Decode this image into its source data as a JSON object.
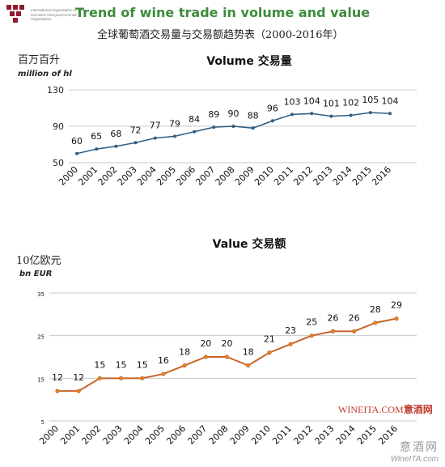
{
  "header": {
    "logo_text": "International Organisation of Vine and Wine Intergovernmental Organisation",
    "title": "Trend of wine trade in volume and value",
    "subtitle": "全球葡萄酒交易量与交易额趋势表（2000-2016年）"
  },
  "watermark": {
    "brand_en": "WINEITA.COM",
    "brand_cn": "意酒网",
    "wm_cn": "意酒网",
    "wm_en": "WineITA.com"
  },
  "colors": {
    "title": "#3c8c3c",
    "volume_line": "#2e5f86",
    "value_line": "#c8642d",
    "value_marker": "#e08a1e",
    "grid": "#c8c8c8"
  },
  "chart_data": [
    {
      "type": "line",
      "title": "Volume 交易量",
      "ylabel_cn": "百万百升",
      "ylabel": "million of hl",
      "categories": [
        "2000",
        "2001",
        "2002",
        "2003",
        "2004",
        "2005",
        "2006",
        "2007",
        "2008",
        "2009",
        "2010",
        "2011",
        "2012",
        "2013",
        "2014",
        "2015",
        "2016"
      ],
      "values": [
        60,
        65,
        68,
        72,
        77,
        79,
        84,
        89,
        90,
        88,
        96,
        103,
        104,
        101,
        102,
        105,
        104
      ],
      "yticks": [
        50,
        90,
        130
      ],
      "ylim": [
        50,
        130
      ],
      "grid": true
    },
    {
      "type": "line",
      "title": "Value 交易额",
      "ylabel_cn": "10亿欧元",
      "ylabel": "bn EUR",
      "categories": [
        "2000",
        "2001",
        "2002",
        "2003",
        "2004",
        "2005",
        "2006",
        "2007",
        "2008",
        "2009",
        "2010",
        "2011",
        "2012",
        "2013",
        "2014",
        "2015",
        "2016"
      ],
      "values": [
        12,
        12,
        15,
        15,
        15,
        16,
        18,
        20,
        20,
        18,
        21,
        23,
        25,
        26,
        26,
        28,
        29
      ],
      "yticks": [
        5,
        15,
        25,
        35
      ],
      "ylim": [
        5,
        35
      ],
      "grid": true
    }
  ]
}
